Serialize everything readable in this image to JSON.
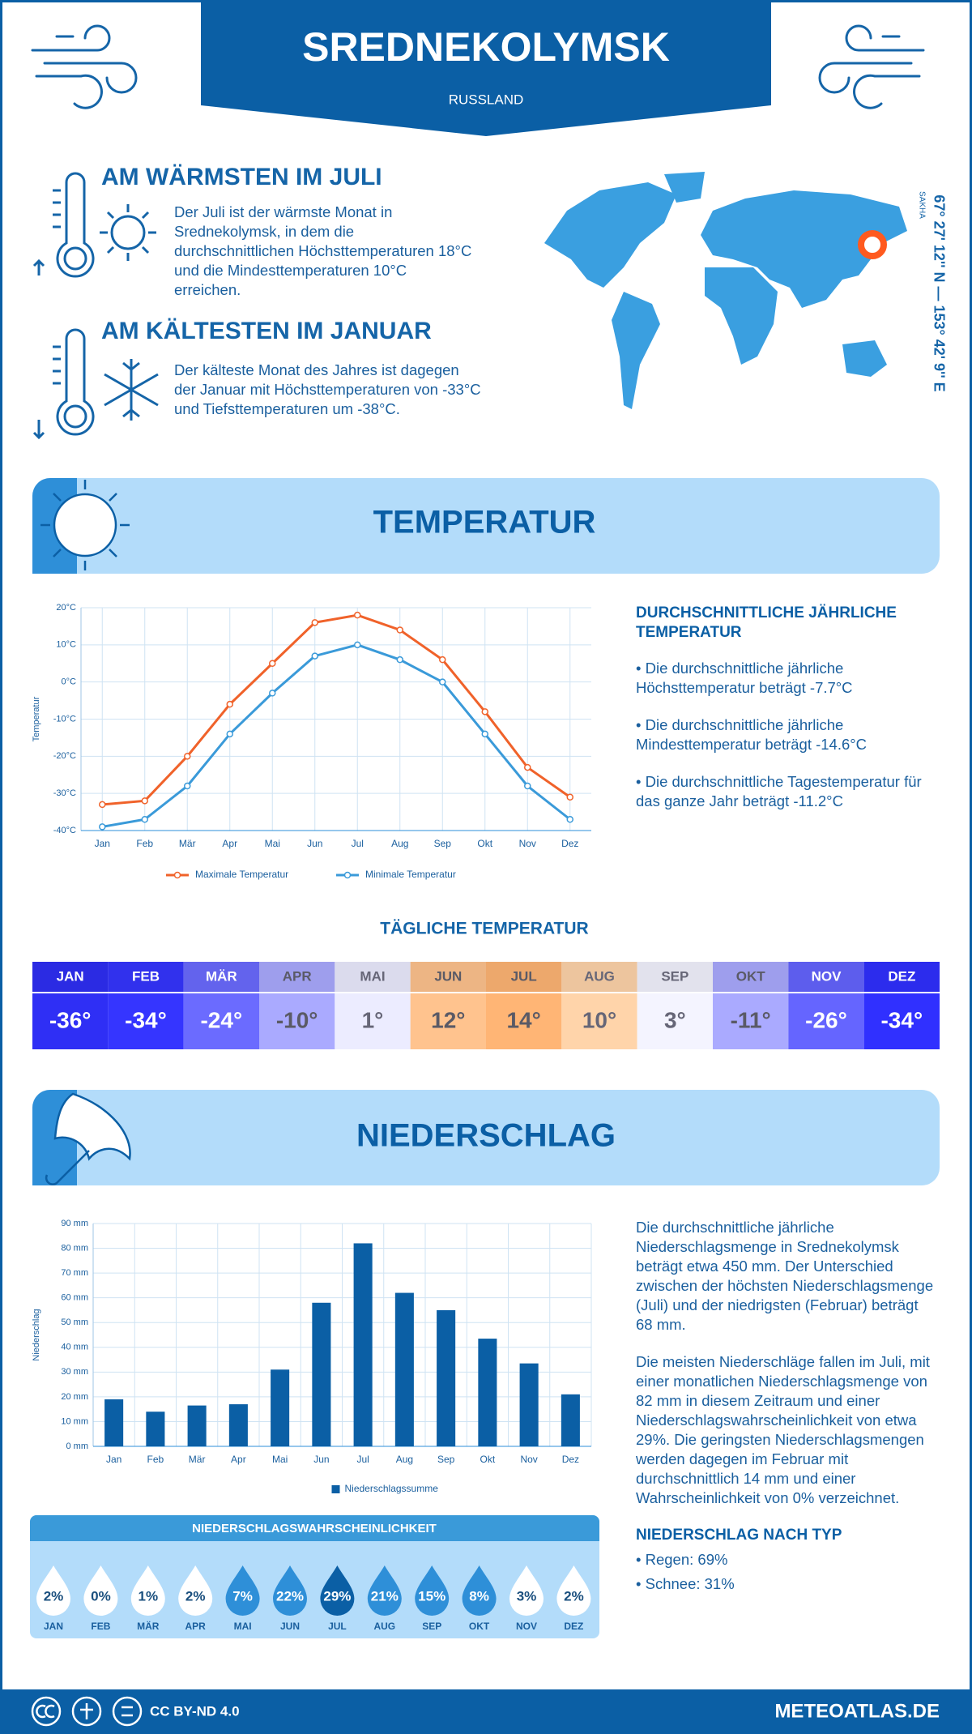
{
  "header": {
    "title": "SREDNEKOLYMSK",
    "subtitle": "RUSSLAND"
  },
  "warmest": {
    "heading": "AM WÄRMSTEN IM JULI",
    "text": "Der Juli ist der wärmste Monat in Srednekolymsk, in dem die durchschnittlichen Höchsttemperaturen 18°C und die Mindesttemperaturen 10°C erreichen."
  },
  "coldest": {
    "heading": "AM KÄLTESTEN IM JANUAR",
    "text": "Der kälteste Monat des Jahres ist dagegen der Januar mit Höchsttemperaturen von -33°C und Tiefsttemperaturen um -38°C."
  },
  "location": {
    "coordinates": "67° 27' 12'' N — 153° 42' 9'' E",
    "region": "SAKHA"
  },
  "temperature": {
    "title": "TEMPERATUR",
    "annual_heading": "DURCHSCHNITTLICHE JÄHRLICHE TEMPERATUR",
    "bullets": [
      "• Die durchschnittliche jährliche Höchsttemperatur beträgt -7.7°C",
      "• Die durchschnittliche jährliche Mindesttemperatur beträgt -14.6°C",
      "• Die durchschnittliche Tagestemperatur für das ganze Jahr beträgt -11.2°C"
    ]
  },
  "chart_data": [
    {
      "type": "line",
      "y_label": "Temperatur",
      "categories": [
        "Jan",
        "Feb",
        "Mär",
        "Apr",
        "Mai",
        "Jun",
        "Jul",
        "Aug",
        "Sep",
        "Okt",
        "Nov",
        "Dez"
      ],
      "series": [
        {
          "name": "Maximale Temperatur",
          "color": "#f0622a",
          "values": [
            -33,
            -32,
            -20,
            -6,
            5,
            16,
            18,
            14,
            6,
            -8,
            -23,
            -31
          ]
        },
        {
          "name": "Minimale Temperatur",
          "color": "#3a9ad9",
          "values": [
            -39,
            -37,
            -28,
            -14,
            -3,
            7,
            10,
            6,
            0,
            -14,
            -28,
            -37
          ]
        }
      ],
      "ylim": [
        -40,
        20
      ],
      "yticks": [
        {
          "value": -40,
          "label": "-40°C"
        },
        {
          "value": -30,
          "label": "-30°C"
        },
        {
          "value": -20,
          "label": "-20°C"
        },
        {
          "value": -10,
          "label": "-10°C"
        },
        {
          "value": 0,
          "label": "0°C"
        },
        {
          "value": 10,
          "label": "10°C"
        },
        {
          "value": 20,
          "label": "20°C"
        }
      ],
      "grid": true
    },
    {
      "type": "bar",
      "y_label": "Niederschlag",
      "categories": [
        "Jan",
        "Feb",
        "Mär",
        "Apr",
        "Mai",
        "Jun",
        "Jul",
        "Aug",
        "Sep",
        "Okt",
        "Nov",
        "Dez"
      ],
      "series": [
        {
          "name": "Niederschlagssumme",
          "color": "#0b5fa5",
          "values": [
            19,
            14,
            16.5,
            17,
            31,
            58,
            82,
            62,
            55,
            43.5,
            33.5,
            21
          ]
        }
      ],
      "ylim": [
        0,
        90
      ],
      "yticks": [
        {
          "value": 0,
          "label": "0 mm"
        },
        {
          "value": 10,
          "label": "10 mm"
        },
        {
          "value": 20,
          "label": "20 mm"
        },
        {
          "value": 30,
          "label": "30 mm"
        },
        {
          "value": 40,
          "label": "40 mm"
        },
        {
          "value": 50,
          "label": "50 mm"
        },
        {
          "value": 60,
          "label": "60 mm"
        },
        {
          "value": 70,
          "label": "70 mm"
        },
        {
          "value": 80,
          "label": "80 mm"
        },
        {
          "value": 90,
          "label": "90 mm"
        }
      ],
      "grid": true
    }
  ],
  "daily_temperature": {
    "title": "TÄGLICHE TEMPERATUR",
    "months": [
      "JAN",
      "FEB",
      "MÄR",
      "APR",
      "MAI",
      "JUN",
      "JUL",
      "AUG",
      "SEP",
      "OKT",
      "NOV",
      "DEZ"
    ],
    "values": [
      -36,
      -34,
      -24,
      -10,
      1,
      12,
      14,
      10,
      3,
      -11,
      -26,
      -34
    ],
    "value_labels": [
      "-36°",
      "-34°",
      "-24°",
      "-10°",
      "1°",
      "12°",
      "14°",
      "10°",
      "3°",
      "-11°",
      "-26°",
      "-34°"
    ],
    "colors": [
      "#2f2ff5",
      "#3535ff",
      "#6b6bff",
      "#aaaaff",
      "#ececff",
      "#ffc38e",
      "#ffb575",
      "#ffd4aa",
      "#f4f4ff",
      "#aaaaff",
      "#6565ff",
      "#3030ff"
    ]
  },
  "precipitation": {
    "title": "NIEDERSCHLAG",
    "paragraphs": [
      "Die durchschnittliche jährliche Niederschlagsmenge in Srednekolymsk beträgt etwa 450 mm. Der Unterschied zwischen der höchsten Niederschlagsmenge (Juli) und der niedrigsten (Februar) beträgt 68 mm.",
      "Die meisten Niederschläge fallen im Juli, mit einer monatlichen Niederschlagsmenge von 82 mm in diesem Zeitraum und einer Niederschlagswahrscheinlichkeit von etwa 29%. Die geringsten Niederschlagsmengen werden dagegen im Februar mit durchschnittlich 14 mm und einer Wahrscheinlichkeit von 0% verzeichnet."
    ],
    "type_heading": "NIEDERSCHLAG NACH TYP",
    "type_bullets": [
      "• Regen: 69%",
      "• Schnee: 31%"
    ]
  },
  "precipitation_probability": {
    "title": "NIEDERSCHLAGSWAHRSCHEINLICHKEIT",
    "months": [
      "JAN",
      "FEB",
      "MÄR",
      "APR",
      "MAI",
      "JUN",
      "JUL",
      "AUG",
      "SEP",
      "OKT",
      "NOV",
      "DEZ"
    ],
    "values": [
      2,
      0,
      1,
      2,
      7,
      22,
      29,
      21,
      15,
      8,
      3,
      2
    ],
    "value_labels": [
      "2%",
      "0%",
      "1%",
      "2%",
      "7%",
      "22%",
      "29%",
      "21%",
      "15%",
      "8%",
      "3%",
      "2%"
    ],
    "colors": [
      "#ffffff",
      "#ffffff",
      "#ffffff",
      "#ffffff",
      "#2e8fd8",
      "#2e8fd8",
      "#0b5fa5",
      "#2e8fd8",
      "#2e8fd8",
      "#2e8fd8",
      "#ffffff",
      "#ffffff"
    ]
  },
  "footer": {
    "license": "CC BY-ND 4.0",
    "site": "METEOATLAS.DE"
  }
}
